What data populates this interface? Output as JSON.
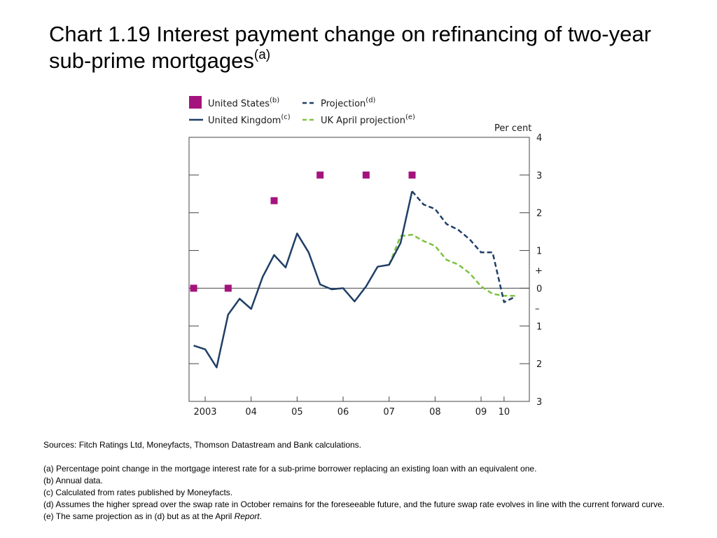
{
  "title": {
    "main": "Chart 1.19  Interest payment change on refinancing of two-year sub-prime mortgages",
    "sup": "(a)"
  },
  "legend": {
    "us": {
      "label": "United States",
      "sup": "(b)"
    },
    "uk": {
      "label": "United Kingdom",
      "sup": "(c)"
    },
    "proj": {
      "label": "Projection",
      "sup": "(d)"
    },
    "ukapr": {
      "label": "UK April projection",
      "sup": "(e)"
    }
  },
  "colors": {
    "us": "#a4137d",
    "uk": "#1f3f66",
    "projection": "#1f3f66",
    "uk_april": "#7dc242",
    "axis": "#444444"
  },
  "chart_data": {
    "type": "line",
    "y_unit": "Per cent",
    "xlim": [
      2002.65,
      2010.05
    ],
    "ylim": [
      -3,
      4
    ],
    "x_ticks": [
      {
        "x": 2003.0,
        "label": "2003"
      },
      {
        "x": 2004.0,
        "label": "04"
      },
      {
        "x": 2005.0,
        "label": "05"
      },
      {
        "x": 2006.0,
        "label": "06"
      },
      {
        "x": 2007.0,
        "label": "07"
      },
      {
        "x": 2008.0,
        "label": "08"
      },
      {
        "x": 2009.0,
        "label": "09"
      },
      {
        "x": 2009.5,
        "label": "10"
      }
    ],
    "y_ticks": [
      {
        "y": 4,
        "label": "4"
      },
      {
        "y": 3,
        "label": "3"
      },
      {
        "y": 2,
        "label": "2"
      },
      {
        "y": 1,
        "label": "1"
      },
      {
        "y": 0,
        "label": "0"
      },
      {
        "y": -1,
        "label": "1"
      },
      {
        "y": -2,
        "label": "2"
      },
      {
        "y": -3,
        "label": "3"
      }
    ],
    "sign_markers": [
      "+",
      "–"
    ],
    "series": [
      {
        "name": "United States",
        "kind": "square",
        "points": [
          [
            2002.75,
            0.0
          ],
          [
            2003.5,
            0.0
          ],
          [
            2004.5,
            2.32
          ],
          [
            2005.5,
            3.0
          ],
          [
            2006.5,
            3.0
          ],
          [
            2007.5,
            3.0
          ]
        ]
      },
      {
        "name": "United Kingdom",
        "kind": "solid",
        "points": [
          [
            2002.75,
            -1.52
          ],
          [
            2003.0,
            -1.62
          ],
          [
            2003.25,
            -2.1
          ],
          [
            2003.5,
            -0.7
          ],
          [
            2003.75,
            -0.28
          ],
          [
            2004.0,
            -0.55
          ],
          [
            2004.25,
            0.3
          ],
          [
            2004.5,
            0.88
          ],
          [
            2004.75,
            0.55
          ],
          [
            2005.0,
            1.45
          ],
          [
            2005.25,
            0.95
          ],
          [
            2005.5,
            0.1
          ],
          [
            2005.75,
            -0.03
          ],
          [
            2006.0,
            0.0
          ],
          [
            2006.25,
            -0.35
          ],
          [
            2006.5,
            0.05
          ],
          [
            2006.75,
            0.57
          ],
          [
            2007.0,
            0.62
          ],
          [
            2007.25,
            1.2
          ],
          [
            2007.5,
            2.57
          ]
        ]
      },
      {
        "name": "Projection",
        "kind": "dashed",
        "points": [
          [
            2007.5,
            2.57
          ],
          [
            2007.75,
            2.22
          ],
          [
            2008.0,
            2.1
          ],
          [
            2008.25,
            1.7
          ],
          [
            2008.5,
            1.55
          ],
          [
            2008.75,
            1.3
          ],
          [
            2009.0,
            0.95
          ],
          [
            2009.25,
            0.95
          ],
          [
            2009.5,
            -0.37
          ],
          [
            2009.75,
            -0.22
          ]
        ]
      },
      {
        "name": "UK April projection",
        "kind": "dashed",
        "points": [
          [
            2007.0,
            0.62
          ],
          [
            2007.25,
            1.38
          ],
          [
            2007.5,
            1.42
          ],
          [
            2007.75,
            1.25
          ],
          [
            2008.0,
            1.12
          ],
          [
            2008.25,
            0.75
          ],
          [
            2008.5,
            0.63
          ],
          [
            2008.75,
            0.4
          ],
          [
            2009.0,
            0.05
          ],
          [
            2009.25,
            -0.15
          ],
          [
            2009.5,
            -0.2
          ],
          [
            2009.75,
            -0.2
          ]
        ]
      }
    ]
  },
  "notes": {
    "sources": "Sources:  Fitch Ratings Ltd, Moneyfacts, Thomson Datastream and Bank calculations.",
    "a": "(a)  Percentage point change in the mortgage interest rate for a sub-prime borrower replacing an existing loan with an equivalent one.",
    "b": "(b)  Annual data.",
    "c": "(c)  Calculated from rates published by Moneyfacts.",
    "d": "(d)  Assumes the higher spread over the swap rate in October remains for the foreseeable future, and the future swap rate evolves in line with the current forward curve.",
    "e_text": "(e)  The same projection as in (d) but as at the April ",
    "e_italic": "Report",
    "e_end": "."
  }
}
